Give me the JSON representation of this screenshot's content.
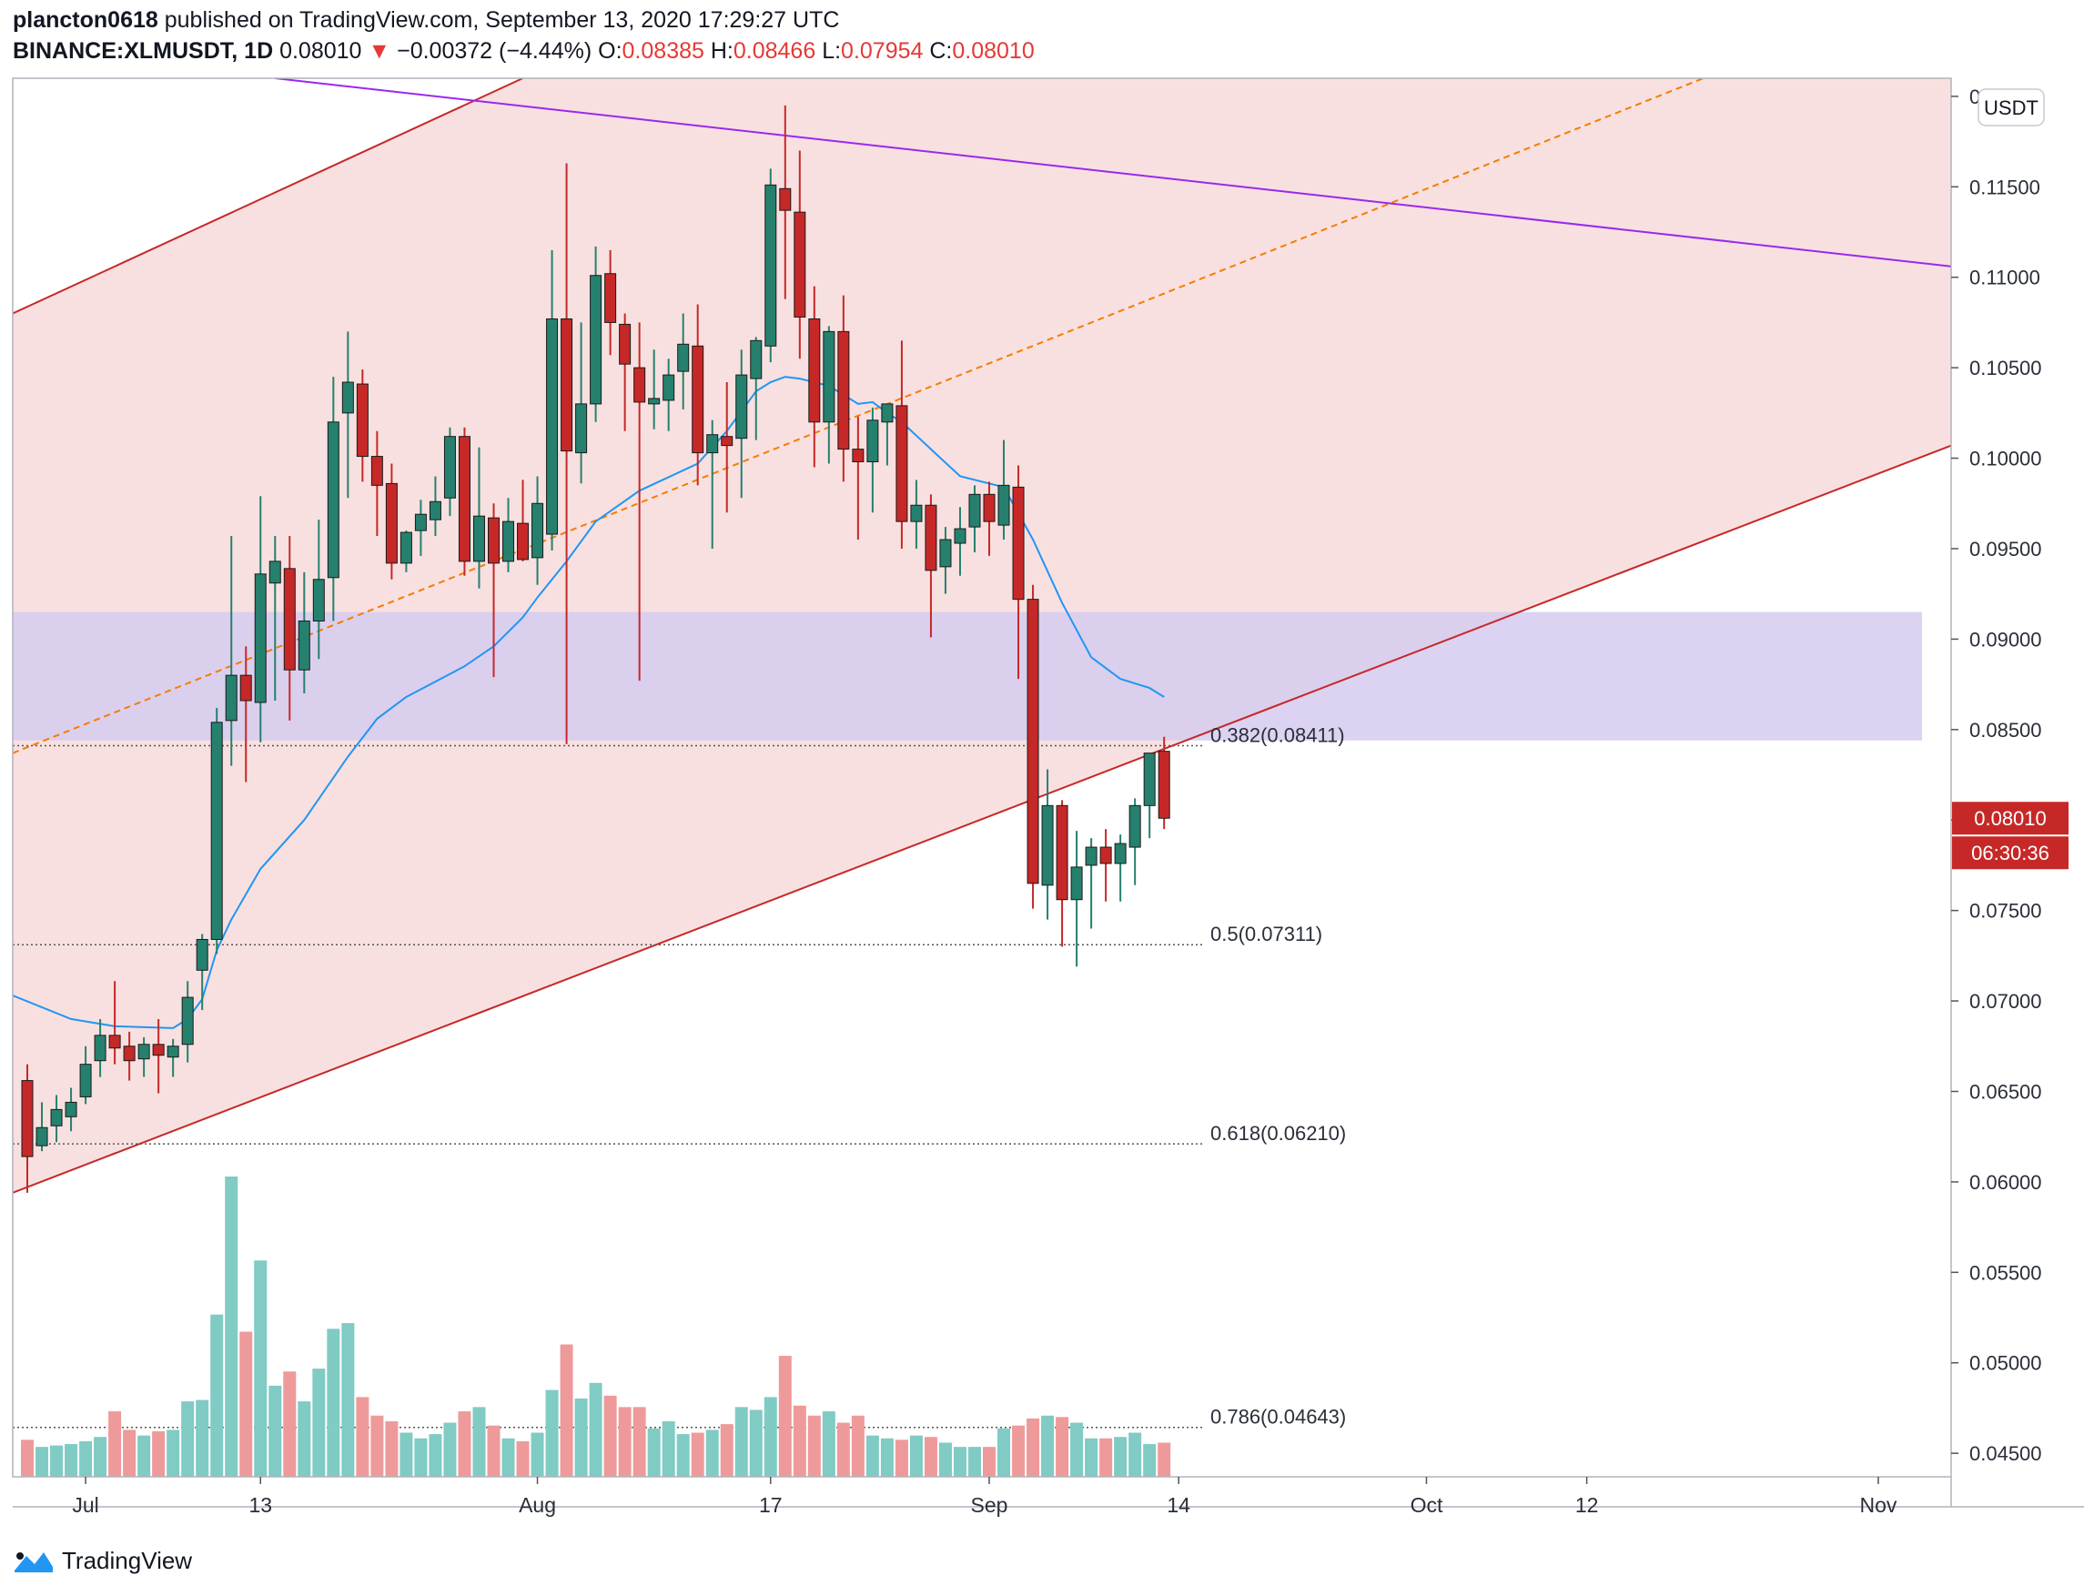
{
  "header": {
    "author": "plancton0618",
    "published_text": "published on TradingView.com, September 13, 2020 17:29:27 UTC",
    "symbol": "BINANCE:XLMUSDT, 1D",
    "last": "0.08010",
    "change_arrow": "▼",
    "change": "−0.00372 (−4.44%)",
    "o_label": "O:",
    "o_value": "0.08385",
    "h_label": "H:",
    "h_value": "0.08466",
    "l_label": "L:",
    "l_value": "0.07954",
    "c_label": "C:",
    "c_value": "0.08010"
  },
  "footer": {
    "brand": "TradingView"
  },
  "colors": {
    "up": "#26806e",
    "down": "#c62828",
    "vol_up": "#80cbc4",
    "vol_down": "#ef9a9a",
    "channel_fill": "#f8e0e0",
    "channel_line": "#c62828",
    "zone_fill": "#d6cbf0",
    "trendline": "#9c27f0",
    "midline": "#f57c00",
    "ma": "#2196f3",
    "price_tag": "#c62828"
  },
  "chart_data": {
    "type": "candlestick",
    "symbol": "BINANCE:XLMUSDT",
    "interval": "1D",
    "currency_label": "USDT",
    "y_ticks": [
      "0.04500",
      "0.05000",
      "0.05500",
      "0.06000",
      "0.06500",
      "0.07000",
      "0.07500",
      "0.08000",
      "0.08500",
      "0.09000",
      "0.09500",
      "0.10000",
      "0.10500",
      "0.11000",
      "0.11500",
      "0.12000"
    ],
    "y_range": [
      0.0437,
      0.121
    ],
    "x_ticks": [
      {
        "label": "Jul",
        "date": "2020-07-01"
      },
      {
        "label": "13",
        "date": "2020-07-13"
      },
      {
        "label": "Aug",
        "date": "2020-08-01"
      },
      {
        "label": "17",
        "date": "2020-08-17"
      },
      {
        "label": "Sep",
        "date": "2020-09-01"
      },
      {
        "label": "14",
        "date": "2020-09-14"
      },
      {
        "label": "Oct",
        "date": "2020-10-01"
      },
      {
        "label": "12",
        "date": "2020-10-12"
      },
      {
        "label": "Nov",
        "date": "2020-11-01"
      }
    ],
    "x_range": [
      "2020-06-26",
      "2020-11-06"
    ],
    "last_price_label": "0.08010",
    "countdown_label": "06:30:36",
    "fibonacci": [
      {
        "label": "0.382(0.08411)",
        "value": 0.08411
      },
      {
        "label": "0.5(0.07311)",
        "value": 0.07311
      },
      {
        "label": "0.618(0.06210)",
        "value": 0.0621
      },
      {
        "label": "0.786(0.04643)",
        "value": 0.04643
      }
    ],
    "resistance_zone": [
      0.0844,
      0.0915
    ],
    "channel": {
      "lower": [
        [
          "2020-06-26",
          0.0594
        ],
        [
          "2020-11-06",
          0.1007
        ]
      ],
      "upper": [
        [
          "2020-06-26",
          0.108
        ],
        [
          "2020-07-31",
          0.121
        ]
      ],
      "midline": [
        [
          "2020-06-26",
          0.0837
        ],
        [
          "2020-10-20",
          0.121
        ]
      ]
    },
    "descending_trendline": [
      [
        "2020-07-14",
        0.121
      ],
      [
        "2020-11-06",
        0.1106
      ]
    ],
    "moving_average": [
      [
        "2020-06-26",
        0.0703
      ],
      [
        "2020-06-30",
        0.069
      ],
      [
        "2020-07-03",
        0.0686
      ],
      [
        "2020-07-07",
        0.0685
      ],
      [
        "2020-07-08",
        0.069
      ],
      [
        "2020-07-09",
        0.0701
      ],
      [
        "2020-07-10",
        0.0728
      ],
      [
        "2020-07-11",
        0.0745
      ],
      [
        "2020-07-13",
        0.0773
      ],
      [
        "2020-07-16",
        0.08
      ],
      [
        "2020-07-19",
        0.0835
      ],
      [
        "2020-07-21",
        0.0856
      ],
      [
        "2020-07-23",
        0.0868
      ],
      [
        "2020-07-27",
        0.0885
      ],
      [
        "2020-07-29",
        0.0896
      ],
      [
        "2020-07-31",
        0.0912
      ],
      [
        "2020-08-01",
        0.0923
      ],
      [
        "2020-08-03",
        0.0943
      ],
      [
        "2020-08-05",
        0.0965
      ],
      [
        "2020-08-08",
        0.0982
      ],
      [
        "2020-08-12",
        0.0997
      ],
      [
        "2020-08-14",
        0.1015
      ],
      [
        "2020-08-16",
        0.1037
      ],
      [
        "2020-08-17",
        0.1042
      ],
      [
        "2020-08-18",
        0.1045
      ],
      [
        "2020-08-19",
        0.1044
      ],
      [
        "2020-08-21",
        0.104
      ],
      [
        "2020-08-23",
        0.103
      ],
      [
        "2020-08-24",
        0.1031
      ],
      [
        "2020-08-25",
        0.1025
      ],
      [
        "2020-08-26",
        0.102
      ],
      [
        "2020-08-28",
        0.1005
      ],
      [
        "2020-08-30",
        0.099
      ],
      [
        "2020-09-02",
        0.0984
      ],
      [
        "2020-09-04",
        0.0955
      ],
      [
        "2020-09-06",
        0.092
      ],
      [
        "2020-09-08",
        0.089
      ],
      [
        "2020-09-10",
        0.0878
      ],
      [
        "2020-09-12",
        0.0873
      ],
      [
        "2020-09-13",
        0.0868
      ]
    ],
    "candles": [
      {
        "d": "2020-06-27",
        "o": 0.0656,
        "h": 0.0665,
        "l": 0.0594,
        "c": 0.0614,
        "v": 2.6
      },
      {
        "d": "2020-06-28",
        "o": 0.062,
        "h": 0.0644,
        "l": 0.0617,
        "c": 0.063,
        "v": 2.1
      },
      {
        "d": "2020-06-29",
        "o": 0.0631,
        "h": 0.0648,
        "l": 0.0622,
        "c": 0.064,
        "v": 2.2
      },
      {
        "d": "2020-06-30",
        "o": 0.0636,
        "h": 0.0652,
        "l": 0.0628,
        "c": 0.0644,
        "v": 2.3
      },
      {
        "d": "2020-07-01",
        "o": 0.0647,
        "h": 0.0675,
        "l": 0.0643,
        "c": 0.0665,
        "v": 2.5
      },
      {
        "d": "2020-07-02",
        "o": 0.0667,
        "h": 0.069,
        "l": 0.0658,
        "c": 0.0681,
        "v": 2.8
      },
      {
        "d": "2020-07-03",
        "o": 0.0681,
        "h": 0.0711,
        "l": 0.0665,
        "c": 0.0674,
        "v": 4.6
      },
      {
        "d": "2020-07-04",
        "o": 0.0675,
        "h": 0.0683,
        "l": 0.0656,
        "c": 0.0667,
        "v": 3.3
      },
      {
        "d": "2020-07-05",
        "o": 0.0668,
        "h": 0.068,
        "l": 0.0658,
        "c": 0.0676,
        "v": 2.9
      },
      {
        "d": "2020-07-06",
        "o": 0.0676,
        "h": 0.069,
        "l": 0.0649,
        "c": 0.067,
        "v": 3.2
      },
      {
        "d": "2020-07-07",
        "o": 0.0669,
        "h": 0.0679,
        "l": 0.0658,
        "c": 0.0675,
        "v": 3.3
      },
      {
        "d": "2020-07-08",
        "o": 0.0676,
        "h": 0.0711,
        "l": 0.0666,
        "c": 0.0702,
        "v": 5.3
      },
      {
        "d": "2020-07-09",
        "o": 0.0717,
        "h": 0.0737,
        "l": 0.0695,
        "c": 0.0734,
        "v": 5.4
      },
      {
        "d": "2020-07-10",
        "o": 0.0734,
        "h": 0.0862,
        "l": 0.0726,
        "c": 0.0854,
        "v": 11.4
      },
      {
        "d": "2020-07-11",
        "o": 0.0855,
        "h": 0.0957,
        "l": 0.083,
        "c": 0.088,
        "v": 21.1
      },
      {
        "d": "2020-07-12",
        "o": 0.088,
        "h": 0.0896,
        "l": 0.0821,
        "c": 0.0866,
        "v": 10.2
      },
      {
        "d": "2020-07-13",
        "o": 0.0865,
        "h": 0.0979,
        "l": 0.0843,
        "c": 0.0936,
        "v": 15.2
      },
      {
        "d": "2020-07-14",
        "o": 0.0931,
        "h": 0.0957,
        "l": 0.0866,
        "c": 0.0943,
        "v": 6.4
      },
      {
        "d": "2020-07-15",
        "o": 0.0939,
        "h": 0.0957,
        "l": 0.0855,
        "c": 0.0883,
        "v": 7.4
      },
      {
        "d": "2020-07-16",
        "o": 0.0883,
        "h": 0.0937,
        "l": 0.087,
        "c": 0.091,
        "v": 5.3
      },
      {
        "d": "2020-07-17",
        "o": 0.091,
        "h": 0.0966,
        "l": 0.0889,
        "c": 0.0933,
        "v": 7.6
      },
      {
        "d": "2020-07-18",
        "o": 0.0934,
        "h": 0.1045,
        "l": 0.091,
        "c": 0.102,
        "v": 10.4
      },
      {
        "d": "2020-07-19",
        "o": 0.1025,
        "h": 0.107,
        "l": 0.0978,
        "c": 0.1042,
        "v": 10.8
      },
      {
        "d": "2020-07-20",
        "o": 0.1041,
        "h": 0.1049,
        "l": 0.0987,
        "c": 0.1001,
        "v": 5.6
      },
      {
        "d": "2020-07-21",
        "o": 0.1001,
        "h": 0.1015,
        "l": 0.0957,
        "c": 0.0985,
        "v": 4.3
      },
      {
        "d": "2020-07-22",
        "o": 0.0986,
        "h": 0.0997,
        "l": 0.0933,
        "c": 0.0942,
        "v": 3.9
      },
      {
        "d": "2020-07-23",
        "o": 0.0942,
        "h": 0.096,
        "l": 0.0937,
        "c": 0.0959,
        "v": 3.1
      },
      {
        "d": "2020-07-24",
        "o": 0.096,
        "h": 0.0977,
        "l": 0.0946,
        "c": 0.0969,
        "v": 2.7
      },
      {
        "d": "2020-07-25",
        "o": 0.0966,
        "h": 0.099,
        "l": 0.0957,
        "c": 0.0976,
        "v": 3.0
      },
      {
        "d": "2020-07-26",
        "o": 0.0978,
        "h": 0.1017,
        "l": 0.0968,
        "c": 0.1012,
        "v": 3.8
      },
      {
        "d": "2020-07-27",
        "o": 0.1012,
        "h": 0.1017,
        "l": 0.0935,
        "c": 0.0943,
        "v": 4.6
      },
      {
        "d": "2020-07-28",
        "o": 0.0943,
        "h": 0.1006,
        "l": 0.0928,
        "c": 0.0968,
        "v": 4.9
      },
      {
        "d": "2020-07-29",
        "o": 0.0967,
        "h": 0.0975,
        "l": 0.0879,
        "c": 0.0942,
        "v": 3.6
      },
      {
        "d": "2020-07-30",
        "o": 0.0943,
        "h": 0.0978,
        "l": 0.0937,
        "c": 0.0965,
        "v": 2.7
      },
      {
        "d": "2020-07-31",
        "o": 0.0964,
        "h": 0.0988,
        "l": 0.0943,
        "c": 0.0944,
        "v": 2.5
      },
      {
        "d": "2020-08-01",
        "o": 0.0945,
        "h": 0.099,
        "l": 0.093,
        "c": 0.0975,
        "v": 3.1
      },
      {
        "d": "2020-08-02",
        "o": 0.0958,
        "h": 0.1115,
        "l": 0.0949,
        "c": 0.1077,
        "v": 6.1
      },
      {
        "d": "2020-08-03",
        "o": 0.1077,
        "h": 0.1163,
        "l": 0.0842,
        "c": 0.1004,
        "v": 9.3
      },
      {
        "d": "2020-08-04",
        "o": 0.1003,
        "h": 0.1075,
        "l": 0.0986,
        "c": 0.103,
        "v": 5.5
      },
      {
        "d": "2020-08-05",
        "o": 0.103,
        "h": 0.1117,
        "l": 0.102,
        "c": 0.1101,
        "v": 6.6
      },
      {
        "d": "2020-08-06",
        "o": 0.1102,
        "h": 0.1115,
        "l": 0.1057,
        "c": 0.1075,
        "v": 5.7
      },
      {
        "d": "2020-08-07",
        "o": 0.1074,
        "h": 0.108,
        "l": 0.1015,
        "c": 0.1052,
        "v": 4.9
      },
      {
        "d": "2020-08-08",
        "o": 0.105,
        "h": 0.1075,
        "l": 0.0877,
        "c": 0.1031,
        "v": 4.9
      },
      {
        "d": "2020-08-09",
        "o": 0.103,
        "h": 0.106,
        "l": 0.1016,
        "c": 0.1033,
        "v": 3.4
      },
      {
        "d": "2020-08-10",
        "o": 0.1032,
        "h": 0.1055,
        "l": 0.1015,
        "c": 0.1046,
        "v": 3.9
      },
      {
        "d": "2020-08-11",
        "o": 0.1048,
        "h": 0.108,
        "l": 0.1027,
        "c": 0.1063,
        "v": 3.0
      },
      {
        "d": "2020-08-12",
        "o": 0.1062,
        "h": 0.1085,
        "l": 0.0985,
        "c": 0.1003,
        "v": 3.1
      },
      {
        "d": "2020-08-13",
        "o": 0.1003,
        "h": 0.1021,
        "l": 0.095,
        "c": 0.1013,
        "v": 3.3
      },
      {
        "d": "2020-08-14",
        "o": 0.1012,
        "h": 0.1042,
        "l": 0.097,
        "c": 0.1007,
        "v": 3.7
      },
      {
        "d": "2020-08-15",
        "o": 0.1011,
        "h": 0.106,
        "l": 0.0978,
        "c": 0.1046,
        "v": 4.9
      },
      {
        "d": "2020-08-16",
        "o": 0.1044,
        "h": 0.1067,
        "l": 0.101,
        "c": 0.1065,
        "v": 4.7
      },
      {
        "d": "2020-08-17",
        "o": 0.1062,
        "h": 0.116,
        "l": 0.1053,
        "c": 0.1151,
        "v": 5.6
      },
      {
        "d": "2020-08-18",
        "o": 0.1149,
        "h": 0.1195,
        "l": 0.1088,
        "c": 0.1137,
        "v": 8.5
      },
      {
        "d": "2020-08-19",
        "o": 0.1136,
        "h": 0.117,
        "l": 0.1055,
        "c": 0.1078,
        "v": 5.0
      },
      {
        "d": "2020-08-20",
        "o": 0.1077,
        "h": 0.1095,
        "l": 0.0995,
        "c": 0.102,
        "v": 4.3
      },
      {
        "d": "2020-08-21",
        "o": 0.102,
        "h": 0.1073,
        "l": 0.0997,
        "c": 0.107,
        "v": 4.6
      },
      {
        "d": "2020-08-22",
        "o": 0.107,
        "h": 0.109,
        "l": 0.0987,
        "c": 0.1005,
        "v": 3.8
      },
      {
        "d": "2020-08-23",
        "o": 0.1005,
        "h": 0.1023,
        "l": 0.0955,
        "c": 0.0998,
        "v": 4.3
      },
      {
        "d": "2020-08-24",
        "o": 0.0998,
        "h": 0.1028,
        "l": 0.097,
        "c": 0.1021,
        "v": 2.9
      },
      {
        "d": "2020-08-25",
        "o": 0.102,
        "h": 0.1023,
        "l": 0.0996,
        "c": 0.103,
        "v": 2.7
      },
      {
        "d": "2020-08-26",
        "o": 0.1029,
        "h": 0.1065,
        "l": 0.095,
        "c": 0.0965,
        "v": 2.6
      },
      {
        "d": "2020-08-27",
        "o": 0.0965,
        "h": 0.0988,
        "l": 0.095,
        "c": 0.0974,
        "v": 2.9
      },
      {
        "d": "2020-08-28",
        "o": 0.0974,
        "h": 0.098,
        "l": 0.0901,
        "c": 0.0938,
        "v": 2.8
      },
      {
        "d": "2020-08-29",
        "o": 0.094,
        "h": 0.0962,
        "l": 0.0925,
        "c": 0.0955,
        "v": 2.4
      },
      {
        "d": "2020-08-30",
        "o": 0.0953,
        "h": 0.0973,
        "l": 0.0935,
        "c": 0.0961,
        "v": 2.1
      },
      {
        "d": "2020-08-31",
        "o": 0.0962,
        "h": 0.0985,
        "l": 0.0948,
        "c": 0.098,
        "v": 2.1
      },
      {
        "d": "2020-09-01",
        "o": 0.098,
        "h": 0.0987,
        "l": 0.0946,
        "c": 0.0965,
        "v": 2.1
      },
      {
        "d": "2020-09-02",
        "o": 0.0963,
        "h": 0.101,
        "l": 0.0955,
        "c": 0.0985,
        "v": 3.4
      },
      {
        "d": "2020-09-03",
        "o": 0.0984,
        "h": 0.0996,
        "l": 0.0878,
        "c": 0.0922,
        "v": 3.6
      },
      {
        "d": "2020-09-04",
        "o": 0.0922,
        "h": 0.093,
        "l": 0.0751,
        "c": 0.0765,
        "v": 4.1
      },
      {
        "d": "2020-09-05",
        "o": 0.0764,
        "h": 0.0828,
        "l": 0.0745,
        "c": 0.0808,
        "v": 4.3
      },
      {
        "d": "2020-09-06",
        "o": 0.0808,
        "h": 0.0811,
        "l": 0.073,
        "c": 0.0756,
        "v": 4.2
      },
      {
        "d": "2020-09-07",
        "o": 0.0756,
        "h": 0.0794,
        "l": 0.0719,
        "c": 0.0774,
        "v": 3.8
      },
      {
        "d": "2020-09-08",
        "o": 0.0775,
        "h": 0.079,
        "l": 0.074,
        "c": 0.0785,
        "v": 2.7
      },
      {
        "d": "2020-09-09",
        "o": 0.0785,
        "h": 0.0795,
        "l": 0.0755,
        "c": 0.0776,
        "v": 2.7
      },
      {
        "d": "2020-09-10",
        "o": 0.0776,
        "h": 0.0792,
        "l": 0.0755,
        "c": 0.0787,
        "v": 2.8
      },
      {
        "d": "2020-09-11",
        "o": 0.0785,
        "h": 0.0812,
        "l": 0.0764,
        "c": 0.0808,
        "v": 3.1
      },
      {
        "d": "2020-09-12",
        "o": 0.0808,
        "h": 0.0833,
        "l": 0.079,
        "c": 0.0837,
        "v": 2.3
      },
      {
        "d": "2020-09-13",
        "o": 0.0838,
        "h": 0.0846,
        "l": 0.0795,
        "c": 0.0801,
        "v": 2.4
      }
    ]
  }
}
